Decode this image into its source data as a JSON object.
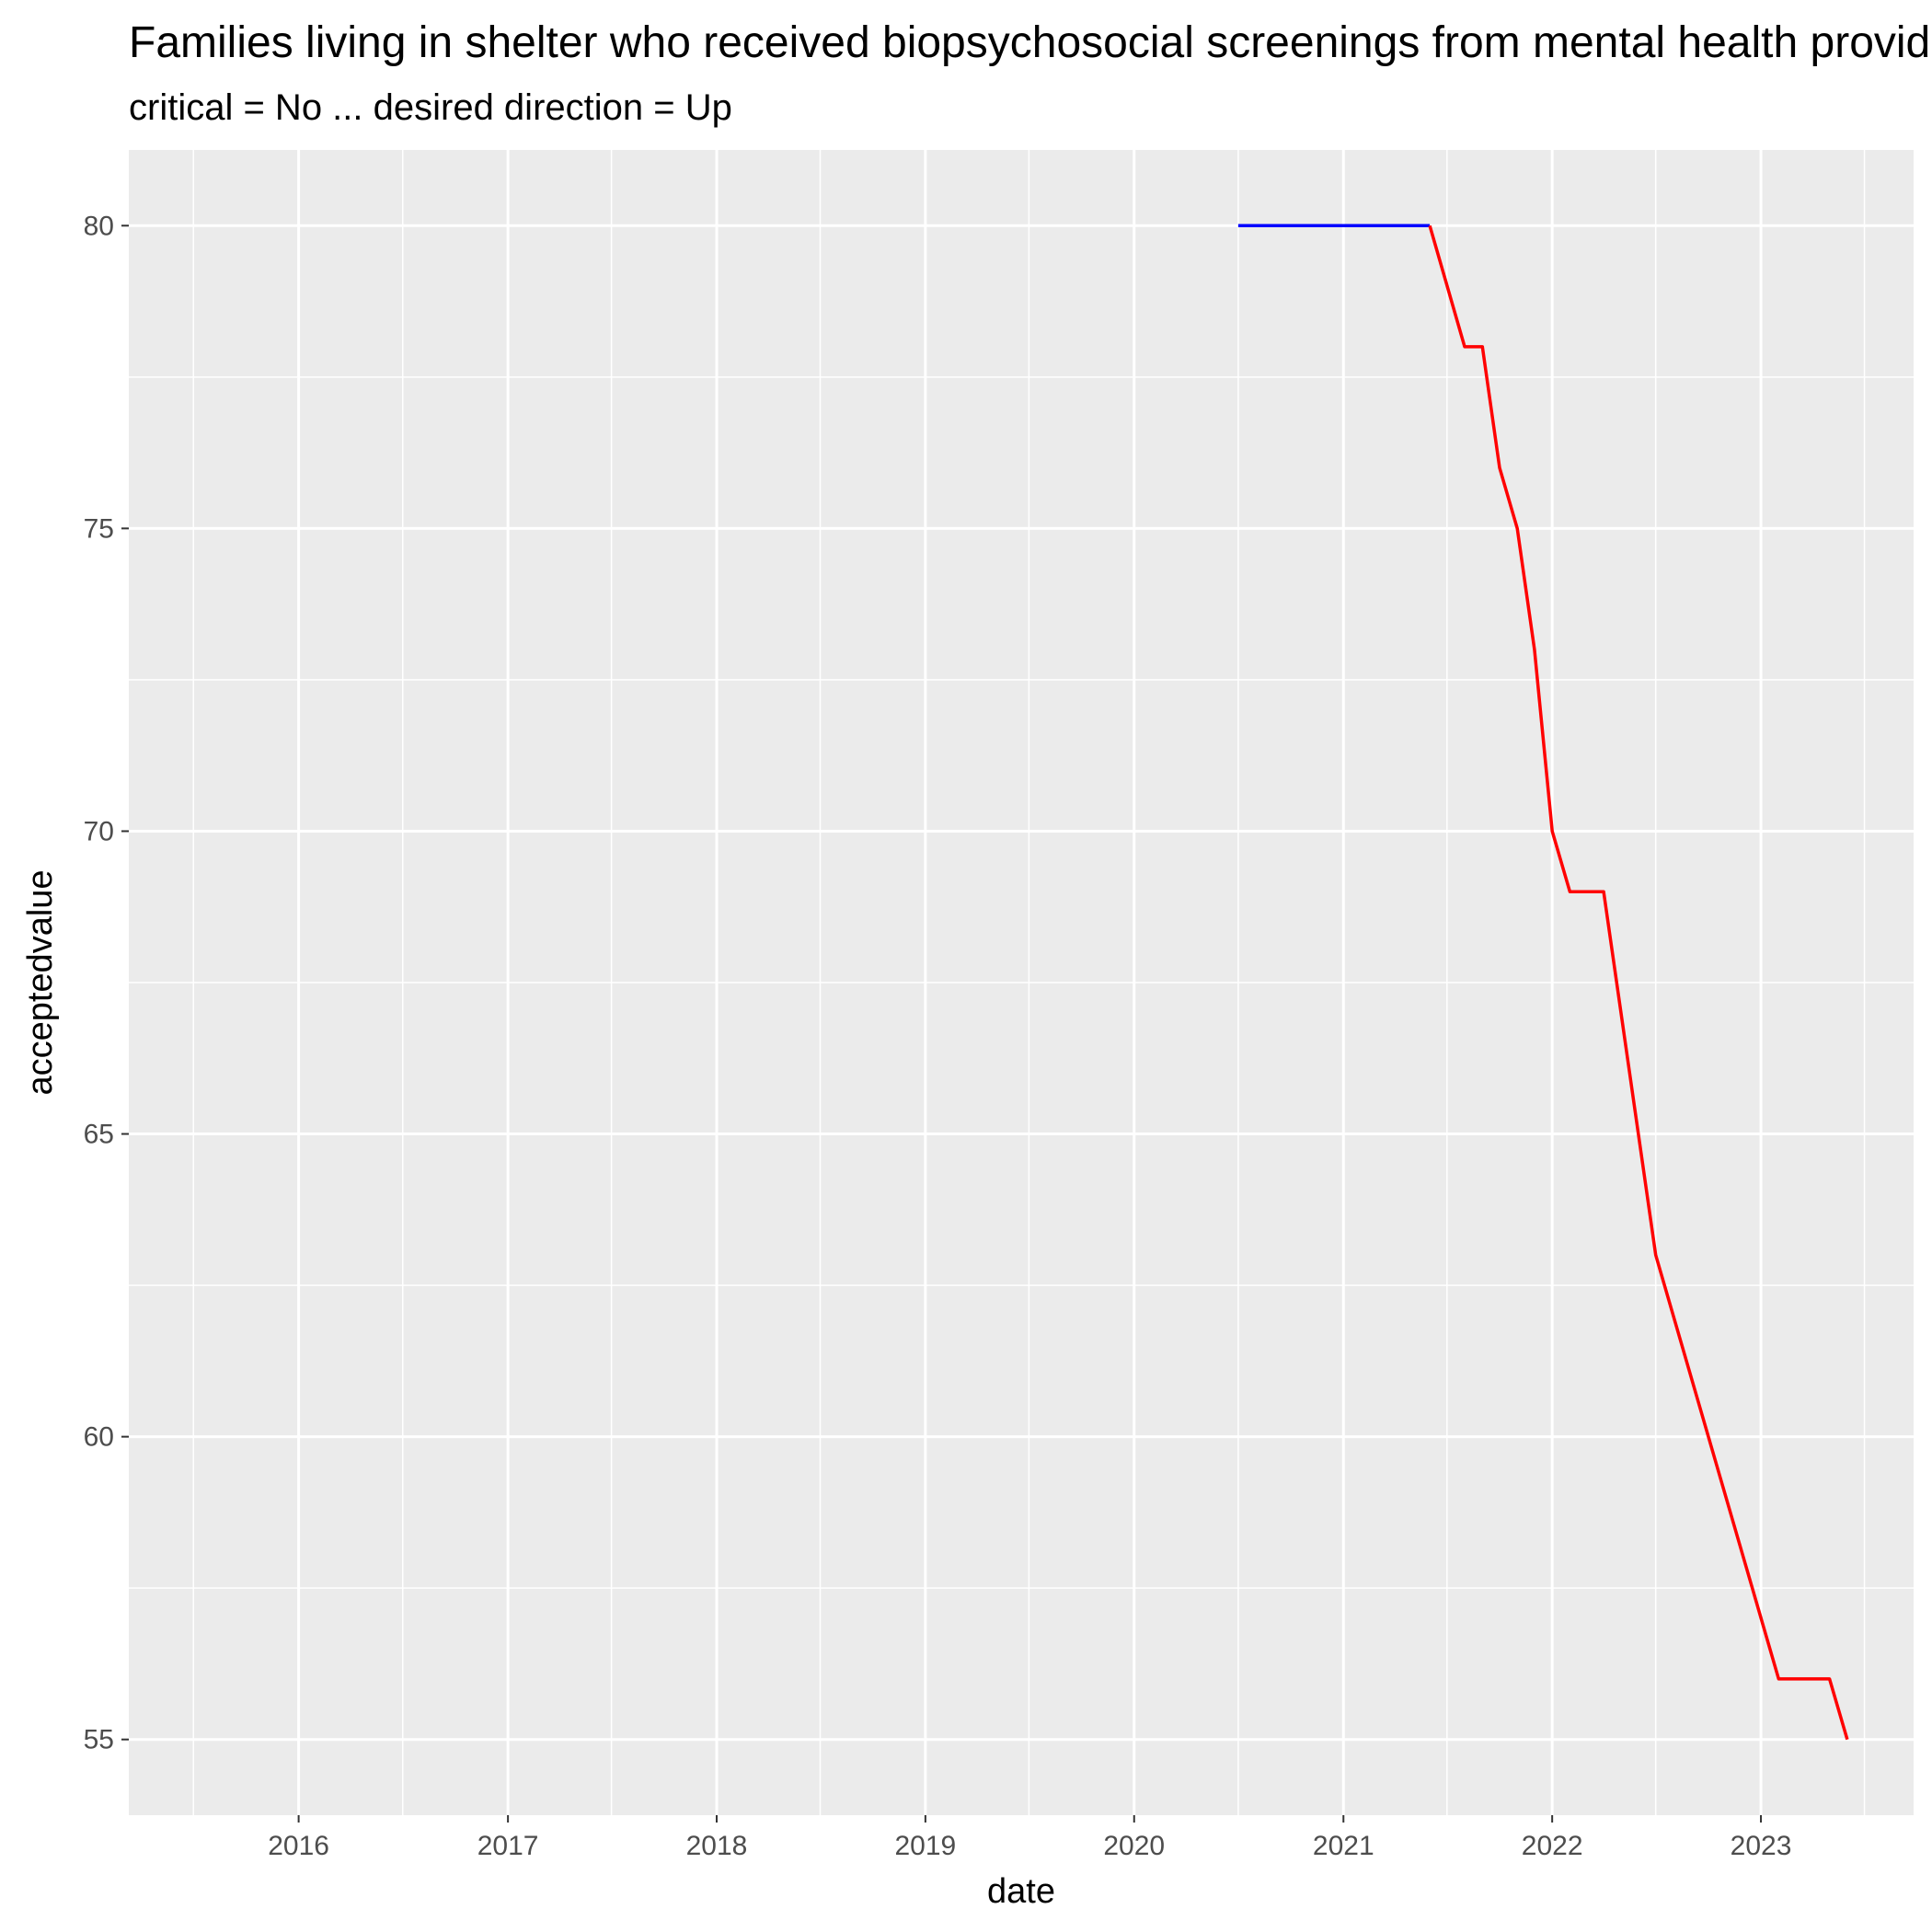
{
  "chart_data": {
    "type": "line",
    "title": "Families living in shelter who received biopsychosocial screenings from mental health providers (%)",
    "subtitle": "critical = No ... desired direction = Up",
    "xlabel": "date",
    "ylabel": "acceptedvalue",
    "x_ticks": [
      "2016",
      "2017",
      "2018",
      "2019",
      "2020",
      "2021",
      "2022",
      "2023"
    ],
    "y_ticks": [
      55,
      60,
      65,
      70,
      75,
      80
    ],
    "xlim": [
      "2015-03-10",
      "2023-09-25"
    ],
    "ylim": [
      53.75,
      81.25
    ],
    "grid": true,
    "legend": "none",
    "background_color": "#ebebeb",
    "series": [
      {
        "color": "#0000ff",
        "points": [
          {
            "x": "2020-07-01",
            "y": 80
          },
          {
            "x": "2021-06-01",
            "y": 80
          }
        ]
      },
      {
        "color": "#ff0000",
        "points": [
          {
            "x": "2021-06-01",
            "y": 80
          },
          {
            "x": "2021-08-01",
            "y": 78
          },
          {
            "x": "2021-09-01",
            "y": 78
          },
          {
            "x": "2021-10-01",
            "y": 76
          },
          {
            "x": "2021-11-01",
            "y": 75
          },
          {
            "x": "2021-12-01",
            "y": 73
          },
          {
            "x": "2022-01-01",
            "y": 70
          },
          {
            "x": "2022-02-01",
            "y": 69
          },
          {
            "x": "2022-04-01",
            "y": 69
          },
          {
            "x": "2022-07-01",
            "y": 63
          },
          {
            "x": "2023-02-01",
            "y": 56
          },
          {
            "x": "2023-05-01",
            "y": 56
          },
          {
            "x": "2023-06-01",
            "y": 55
          }
        ]
      }
    ]
  }
}
